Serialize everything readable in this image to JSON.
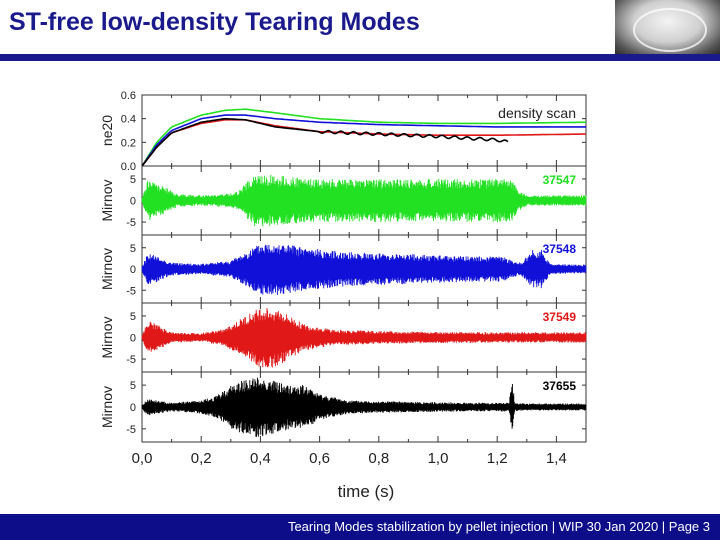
{
  "slide": {
    "title": "ST-free low-density Tearing Modes",
    "footer": "Tearing Modes stabilization by pellet injection | WIP 30 Jan 2020 | Page 3"
  },
  "colors": {
    "title": "#1a1a8c",
    "footer_bar": "#0d0d8a",
    "series": [
      "#22e022",
      "#1010d8",
      "#e01818",
      "#000000"
    ]
  },
  "chart_data": {
    "type": "line",
    "xlabel": "time (s)",
    "xlim": [
      0.0,
      1.5
    ],
    "xticks": [
      "0,0",
      "0,2",
      "0,4",
      "0,6",
      "0,8",
      "1,0",
      "1,2",
      "1,4"
    ],
    "xtick_values": [
      0.0,
      0.2,
      0.4,
      0.6,
      0.8,
      1.0,
      1.2,
      1.4
    ],
    "panels": [
      {
        "ylabel": "ne20",
        "ylim": [
          0.0,
          0.6
        ],
        "yticks": [
          "0.6",
          "0.4",
          "0.2",
          "0.0"
        ],
        "ytick_values": [
          0.6,
          0.4,
          0.2,
          0.0
        ],
        "annotation": "density scan",
        "series": [
          {
            "color": "#22e022",
            "x": [
              0.0,
              0.05,
              0.1,
              0.2,
              0.28,
              0.35,
              0.45,
              0.6,
              0.8,
              1.0,
              1.2,
              1.5
            ],
            "y": [
              0.0,
              0.2,
              0.33,
              0.43,
              0.47,
              0.48,
              0.45,
              0.4,
              0.37,
              0.36,
              0.36,
              0.37
            ]
          },
          {
            "color": "#1010d8",
            "x": [
              0.0,
              0.05,
              0.1,
              0.2,
              0.28,
              0.35,
              0.45,
              0.6,
              0.8,
              1.0,
              1.2,
              1.5
            ],
            "y": [
              0.0,
              0.18,
              0.3,
              0.4,
              0.43,
              0.43,
              0.4,
              0.37,
              0.35,
              0.34,
              0.33,
              0.33
            ]
          },
          {
            "color": "#e01818",
            "x": [
              0.0,
              0.05,
              0.1,
              0.2,
              0.28,
              0.35,
              0.45,
              0.6,
              0.8,
              1.0,
              1.2,
              1.5
            ],
            "y": [
              0.0,
              0.16,
              0.28,
              0.36,
              0.39,
              0.39,
              0.34,
              0.29,
              0.27,
              0.26,
              0.26,
              0.27
            ]
          },
          {
            "color": "#000000",
            "x": [
              0.0,
              0.05,
              0.1,
              0.2,
              0.28,
              0.35,
              0.45,
              0.6,
              0.8,
              1.0,
              1.2,
              1.24
            ],
            "y": [
              0.0,
              0.16,
              0.28,
              0.37,
              0.4,
              0.39,
              0.33,
              0.29,
              0.27,
              0.25,
              0.22,
              0.2
            ]
          }
        ]
      },
      {
        "ylabel": "Mirnov",
        "ylim": [
          -8,
          8
        ],
        "yticks": [
          "5",
          "0",
          "-5"
        ],
        "ytick_values": [
          5,
          0,
          -5
        ],
        "annotation": "37547",
        "color": "#22e022",
        "envelope": {
          "x": [
            0.0,
            0.02,
            0.05,
            0.08,
            0.12,
            0.2,
            0.28,
            0.32,
            0.35,
            0.38,
            0.45,
            0.55,
            0.7,
            0.9,
            1.1,
            1.25,
            1.27,
            1.3,
            1.5
          ],
          "amp": [
            0.5,
            5,
            4,
            3,
            1.5,
            1.2,
            1.5,
            2,
            4,
            6,
            6,
            5,
            5,
            5,
            5,
            5,
            2.5,
            1.2,
            1.2
          ]
        }
      },
      {
        "ylabel": "Mirnov",
        "ylim": [
          -8,
          8
        ],
        "yticks": [
          "5",
          "0",
          "-5"
        ],
        "ytick_values": [
          5,
          0,
          -5
        ],
        "annotation": "37548",
        "color": "#1010d8",
        "envelope": {
          "x": [
            0.0,
            0.02,
            0.05,
            0.1,
            0.2,
            0.3,
            0.35,
            0.4,
            0.45,
            0.55,
            0.7,
            0.9,
            1.1,
            1.22,
            1.25,
            1.28,
            1.32,
            1.35,
            1.38,
            1.5
          ],
          "amp": [
            0.5,
            4,
            3,
            1.5,
            1.2,
            2,
            4,
            6,
            6.5,
            5,
            4,
            3.5,
            3,
            3,
            2,
            1.5,
            4.5,
            4.5,
            1.2,
            1
          ]
        }
      },
      {
        "ylabel": "Mirnov",
        "ylim": [
          -8,
          8
        ],
        "yticks": [
          "5",
          "0",
          "-5"
        ],
        "ytick_values": [
          5,
          0,
          -5
        ],
        "annotation": "37549",
        "color": "#e01818",
        "envelope": {
          "x": [
            0.0,
            0.02,
            0.05,
            0.1,
            0.2,
            0.28,
            0.35,
            0.4,
            0.45,
            0.5,
            0.55,
            0.65,
            0.8,
            1.0,
            1.2,
            1.5
          ],
          "amp": [
            0.5,
            4,
            3,
            1.2,
            1,
            2,
            5,
            7,
            7,
            5,
            3,
            1.8,
            1.5,
            1.3,
            1.2,
            1.2
          ]
        }
      },
      {
        "ylabel": "Mirnov",
        "ylim": [
          -8,
          8
        ],
        "yticks": [
          "5",
          "0",
          "-5"
        ],
        "ytick_values": [
          5,
          0,
          -5
        ],
        "annotation": "37655",
        "color": "#000000",
        "envelope": {
          "x": [
            0.0,
            0.02,
            0.05,
            0.1,
            0.2,
            0.25,
            0.3,
            0.35,
            0.4,
            0.45,
            0.5,
            0.55,
            0.6,
            0.7,
            0.9,
            1.1,
            1.2,
            1.24,
            1.25,
            1.26,
            1.3,
            1.5
          ],
          "amp": [
            0.5,
            2,
            1.5,
            1,
            1.5,
            2.5,
            5,
            6.5,
            7,
            6,
            5,
            5,
            3,
            1.5,
            1.2,
            1,
            1,
            1,
            6,
            1,
            0.8,
            0.8
          ]
        }
      }
    ]
  }
}
